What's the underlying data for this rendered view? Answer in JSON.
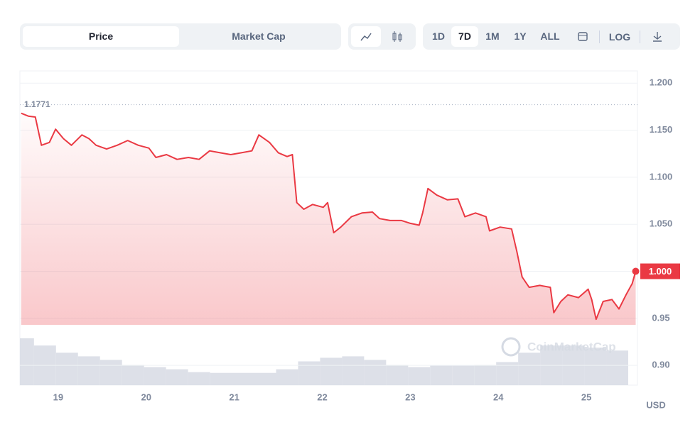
{
  "controls": {
    "tabs": [
      "Price",
      "Market Cap"
    ],
    "ranges": [
      "1D",
      "7D",
      "1M",
      "1Y",
      "ALL"
    ],
    "log": "LOG"
  },
  "chart_data": {
    "type": "line",
    "color": "#ea3943",
    "grid": true,
    "x": [
      18.58,
      18.66,
      18.74,
      18.81,
      18.9,
      18.97,
      19.06,
      19.15,
      19.27,
      19.35,
      19.43,
      19.55,
      19.67,
      19.79,
      19.91,
      20.03,
      20.11,
      20.23,
      20.35,
      20.48,
      20.6,
      20.72,
      20.84,
      20.96,
      21.08,
      21.2,
      21.28,
      21.4,
      21.5,
      21.6,
      21.66,
      21.71,
      21.79,
      21.89,
      22.01,
      22.06,
      22.13,
      22.21,
      22.33,
      22.45,
      22.57,
      22.65,
      22.77,
      22.9,
      23.0,
      23.1,
      23.14,
      23.2,
      23.3,
      23.42,
      23.54,
      23.62,
      23.74,
      23.86,
      23.9,
      24.02,
      24.15,
      24.21,
      24.27,
      24.35,
      24.47,
      24.59,
      24.63,
      24.71,
      24.79,
      24.91,
      25.02,
      25.06,
      25.11,
      25.19,
      25.29,
      25.37,
      25.45,
      25.52,
      25.56
    ],
    "values": [
      1.168,
      1.165,
      1.164,
      1.134,
      1.137,
      1.151,
      1.141,
      1.134,
      1.145,
      1.141,
      1.134,
      1.13,
      1.134,
      1.139,
      1.134,
      1.131,
      1.121,
      1.124,
      1.119,
      1.121,
      1.119,
      1.128,
      1.126,
      1.124,
      1.126,
      1.128,
      1.145,
      1.137,
      1.126,
      1.122,
      1.124,
      1.073,
      1.066,
      1.071,
      1.068,
      1.073,
      1.041,
      1.047,
      1.058,
      1.062,
      1.063,
      1.056,
      1.054,
      1.054,
      1.051,
      1.049,
      1.062,
      1.088,
      1.081,
      1.076,
      1.077,
      1.058,
      1.062,
      1.058,
      1.043,
      1.047,
      1.045,
      1.021,
      0.994,
      0.983,
      0.985,
      0.983,
      0.956,
      0.968,
      0.975,
      0.972,
      0.981,
      0.97,
      0.949,
      0.968,
      0.97,
      0.96,
      0.975,
      0.987,
      1.0
    ],
    "last_value_label": "1.000",
    "reference_line": {
      "value": 1.1771,
      "label": "1.1771"
    },
    "volume": {
      "x": [
        18.6,
        18.85,
        19.1,
        19.35,
        19.6,
        19.85,
        20.1,
        20.35,
        20.6,
        20.85,
        21.1,
        21.35,
        21.6,
        21.85,
        22.1,
        22.35,
        22.6,
        22.85,
        23.1,
        23.35,
        23.6,
        23.85,
        24.1,
        24.35,
        24.6,
        24.85,
        25.1,
        25.35
      ],
      "values": [
        65,
        55,
        45,
        40,
        35,
        28,
        25,
        22,
        18,
        17,
        17,
        17,
        22,
        33,
        38,
        40,
        35,
        28,
        25,
        27,
        27,
        28,
        32,
        45,
        55,
        55,
        52,
        48
      ]
    },
    "xlim": [
      18.565,
      25.58
    ],
    "xticks": [
      19,
      20,
      21,
      22,
      23,
      24,
      25
    ],
    "ylim": [
      0.879,
      1.213
    ],
    "yticks": [
      {
        "value": 0.9,
        "label": "0.90"
      },
      0.95,
      {
        "value": 1.0,
        "label": "1.000"
      },
      {
        "value": 1.05,
        "label": "1.050"
      },
      {
        "value": 1.1,
        "label": "1.100"
      },
      {
        "value": 1.15,
        "label": "1.150"
      },
      {
        "value": 1.2,
        "label": "1.200"
      }
    ],
    "unit": "USD",
    "watermark": "CoinMarketCap"
  }
}
